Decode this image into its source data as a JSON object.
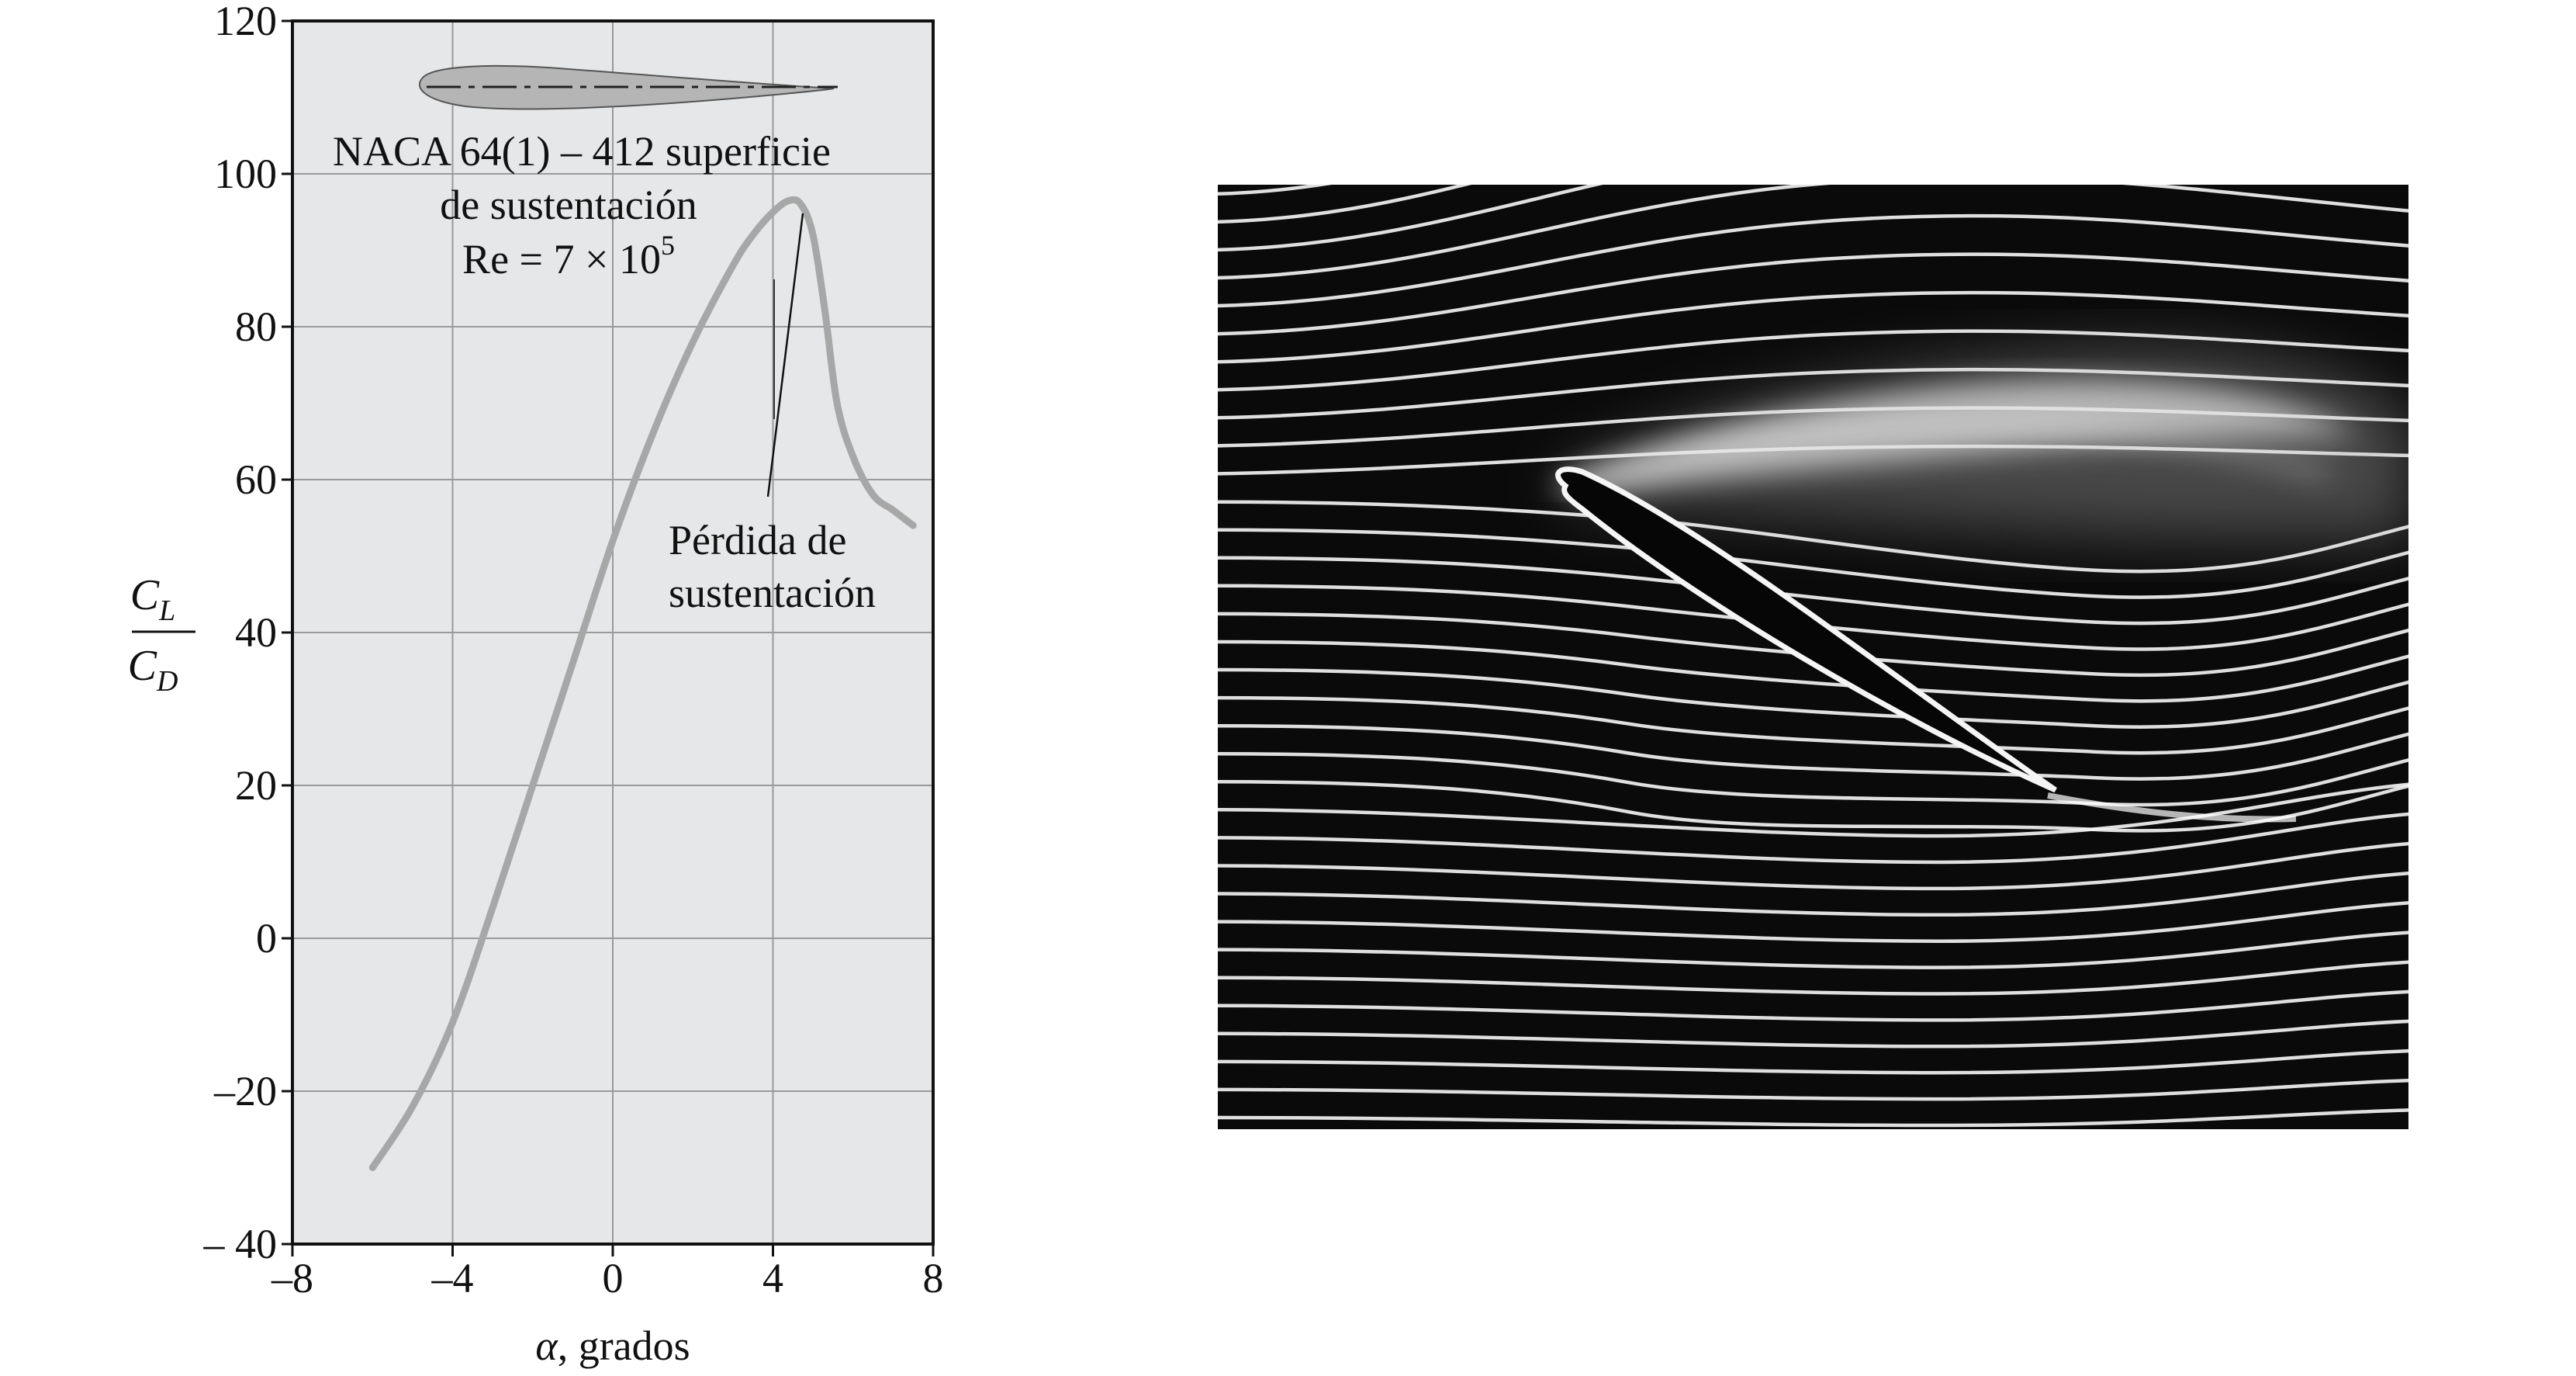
{
  "chart_data": {
    "type": "line",
    "xlabel_symbol": "α",
    "xlabel_rest": ", grados",
    "ylabel_num": "C",
    "ylabel_num_sub": "L",
    "ylabel_den": "C",
    "ylabel_den_sub": "D",
    "xlim": [
      -8,
      8
    ],
    "ylim": [
      -40,
      120
    ],
    "x_ticks": [
      -8,
      -4,
      0,
      4,
      8
    ],
    "y_ticks": [
      -40,
      -20,
      0,
      20,
      40,
      60,
      80,
      100,
      120
    ],
    "x_tick_labels": [
      "–8",
      "–4",
      "0",
      "4",
      "8"
    ],
    "y_tick_labels": [
      "– 40",
      "–20",
      "0",
      "20",
      "40",
      "60",
      "80",
      "100",
      "120"
    ],
    "grid": true,
    "series": [
      {
        "x": [
          -6.0,
          -5.0,
          -4.0,
          -3.0,
          -2.0,
          -1.0,
          0.0,
          1.0,
          2.0,
          3.0,
          3.5,
          4.0,
          4.4,
          4.7,
          5.0,
          5.3,
          5.6,
          6.0,
          6.5,
          7.0,
          7.5
        ],
        "y": [
          -30,
          -22,
          -11,
          4,
          20,
          36,
          52,
          66,
          78,
          88,
          92,
          95,
          96.5,
          96,
          92,
          82,
          70,
          63,
          58,
          56,
          54
        ]
      }
    ],
    "annotations": {
      "airfoil_line1": "NACA 64(1) – 412 superficie",
      "airfoil_line2": "de sustentación",
      "re_prefix": "Re = 7 × 10",
      "re_exp": "5",
      "stall_line1": "Pérdida de",
      "stall_line2": "sustentación"
    }
  },
  "colors": {
    "plot_background": "#e6e7e8",
    "grid": "#9a9a9a",
    "curve": "#a7a7a7",
    "airfoil_fill": "#b5b5b5",
    "photo_background": "#0a0a0a",
    "streamline": "#f2f2f2"
  }
}
